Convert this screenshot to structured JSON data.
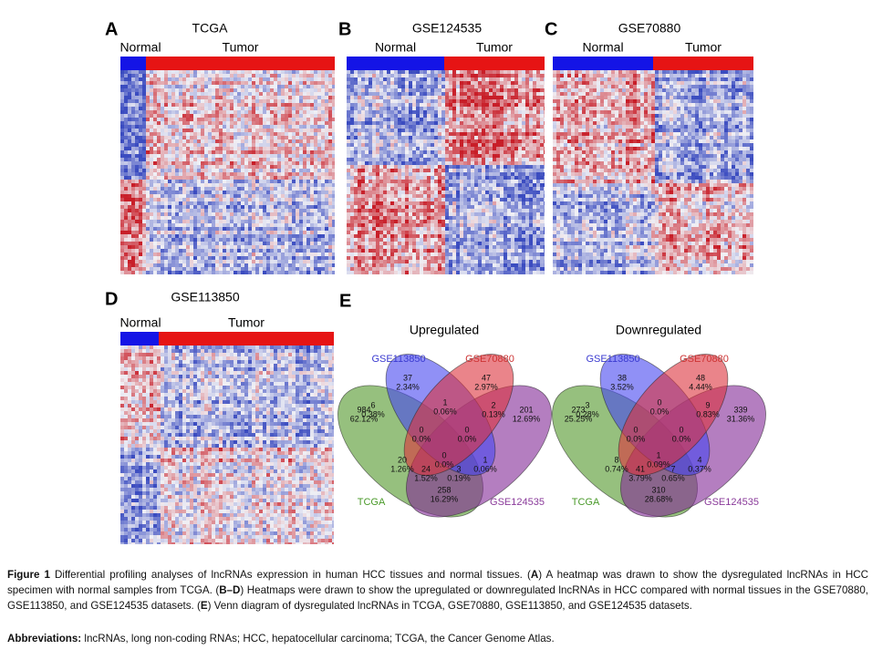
{
  "heatmaps": [
    {
      "letter": "A",
      "title": "TCGA",
      "groups": [
        "Normal",
        "Tumor"
      ]
    },
    {
      "letter": "B",
      "title": "GSE124535",
      "groups": [
        "Normal",
        "Tumor"
      ]
    },
    {
      "letter": "C",
      "title": "GSE70880",
      "groups": [
        "Normal",
        "Tumor"
      ]
    },
    {
      "letter": "D",
      "title": "GSE113850",
      "groups": [
        "Normal",
        "Tumor"
      ]
    }
  ],
  "venn": {
    "letter": "E",
    "diagrams": [
      {
        "title": "Upregulated",
        "sets": [
          "GSE113850",
          "GSE70880",
          "TCGA",
          "GSE124535"
        ],
        "regions": [
          {
            "count": 37,
            "percent": "2.34%"
          },
          {
            "count": 47,
            "percent": "2.97%"
          },
          {
            "count": 984,
            "percent": "62.12%"
          },
          {
            "count": 201,
            "percent": "12.69%"
          },
          {
            "count": 6,
            "percent": "0.38%"
          },
          {
            "count": 1,
            "percent": "0.06%"
          },
          {
            "count": 2,
            "percent": "0.13%"
          },
          {
            "count": 0,
            "percent": "0.0%"
          },
          {
            "count": 0,
            "percent": "0.0%"
          },
          {
            "count": 0,
            "percent": "0.0%"
          },
          {
            "count": 20,
            "percent": "1.26%"
          },
          {
            "count": 1,
            "percent": "0.06%"
          },
          {
            "count": 24,
            "percent": "1.52%"
          },
          {
            "count": 3,
            "percent": "0.19%"
          },
          {
            "count": 258,
            "percent": "16.29%"
          }
        ]
      },
      {
        "title": "Downregulated",
        "sets": [
          "GSE113850",
          "GSE70880",
          "TCGA",
          "GSE124535"
        ],
        "regions": [
          {
            "count": 38,
            "percent": "3.52%"
          },
          {
            "count": 48,
            "percent": "4.44%"
          },
          {
            "count": 273,
            "percent": "25.25%"
          },
          {
            "count": 339,
            "percent": "31.36%"
          },
          {
            "count": 3,
            "percent": "0.28%"
          },
          {
            "count": 0,
            "percent": "0.0%"
          },
          {
            "count": 9,
            "percent": "0.83%"
          },
          {
            "count": 0,
            "percent": "0.0%"
          },
          {
            "count": 0,
            "percent": "0.0%"
          },
          {
            "count": 1,
            "percent": "0.09%"
          },
          {
            "count": 8,
            "percent": "0.74%"
          },
          {
            "count": 4,
            "percent": "0.37%"
          },
          {
            "count": 41,
            "percent": "3.79%"
          },
          {
            "count": 7,
            "percent": "0.65%"
          },
          {
            "count": 310,
            "percent": "28.68%"
          }
        ]
      }
    ]
  },
  "caption": {
    "segments": [
      {
        "text": "Figure 1",
        "bold": true
      },
      {
        "text": " Differential profiling analyses of lncRNAs expression in human HCC tissues and normal tissues. (",
        "bold": false
      },
      {
        "text": "A",
        "bold": true
      },
      {
        "text": ") A heatmap was drawn to show the dysregulated lncRNAs in HCC specimen with normal samples from TCGA. (",
        "bold": false
      },
      {
        "text": "B–D",
        "bold": true
      },
      {
        "text": ") Heatmaps were drawn to show the upregulated or downregulated lncRNAs in HCC compared with normal tissues in the GSE70880, GSE113850, and GSE124535 datasets. (",
        "bold": false
      },
      {
        "text": "E",
        "bold": true
      },
      {
        "text": ") Venn diagram of dysregulated lncRNAs in TCGA, GSE70880, GSE113850, and GSE124535 datasets.",
        "bold": false
      }
    ],
    "abbreviations_label": "Abbreviations:",
    "abbreviations": " lncRNAs, long non-coding RNAs; HCC, hepatocellular carcinoma; TCGA, the Cancer Genome Atlas."
  }
}
